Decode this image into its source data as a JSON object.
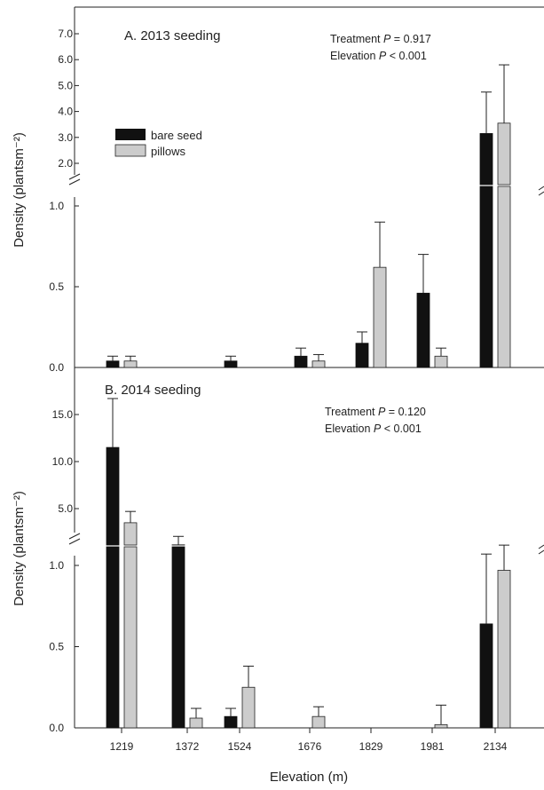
{
  "colors": {
    "bare_seed": "#111111",
    "pillows": "#cccccc",
    "axis": "#222222"
  },
  "x_axis": {
    "label": "Elevation (m)",
    "categories": [
      "1219",
      "1372",
      "1524",
      "1676",
      "1829",
      "1981",
      "2134"
    ]
  },
  "legend": {
    "placement": "upper-left of panel A",
    "items": [
      "bare seed",
      "pillows"
    ]
  },
  "panels": [
    {
      "title": "A. 2013 seeding",
      "stat_line_1_prefix": "Treatment ",
      "stat_line_1_p": "P",
      "stat_line_1_suffix": " = 0.917",
      "stat_line_2_prefix": "Elevation ",
      "stat_line_2_p": "P",
      "stat_line_2_suffix": " < 0.001",
      "ylabel": "Density (plantsm⁻²)"
    },
    {
      "title": "B. 2014 seeding",
      "stat_line_1_prefix": "Treatment ",
      "stat_line_1_p": "P",
      "stat_line_1_suffix": " = 0.120",
      "stat_line_2_prefix": "Elevation ",
      "stat_line_2_p": "P",
      "stat_line_2_suffix": " < 0.001",
      "ylabel": "Density (plantsm⁻²)"
    }
  ],
  "chart_data": [
    {
      "type": "bar",
      "title": "A. 2013 seeding",
      "xlabel": "Elevation (m)",
      "ylabel": "Density (plantsm-2)",
      "categories": [
        "1219",
        "1372",
        "1524",
        "1676",
        "1829",
        "1981",
        "2134"
      ],
      "broken_axis": true,
      "lower_range": [
        0,
        1.1
      ],
      "upper_range": [
        1.6,
        7.5
      ],
      "lower_ticks": [
        "0.0",
        "0.5",
        "1.0"
      ],
      "upper_ticks": [
        "2.0",
        "3.0",
        "4.0",
        "5.0",
        "6.0",
        "7.0"
      ],
      "series": [
        {
          "name": "bare seed",
          "values": [
            0.04,
            null,
            0.04,
            0.07,
            0.15,
            0.46,
            3.15
          ],
          "errors": [
            0.03,
            null,
            0.03,
            0.05,
            0.07,
            0.24,
            1.6
          ]
        },
        {
          "name": "pillows",
          "values": [
            0.04,
            null,
            null,
            0.04,
            0.62,
            0.07,
            3.55
          ],
          "errors": [
            0.03,
            null,
            null,
            0.04,
            0.28,
            0.05,
            2.25
          ]
        }
      ]
    },
    {
      "type": "bar",
      "title": "B. 2014 seeding",
      "xlabel": "Elevation (m)",
      "ylabel": "Density (plantsm-2)",
      "categories": [
        "1219",
        "1372",
        "1524",
        "1676",
        "1829",
        "1981",
        "2134"
      ],
      "broken_axis": true,
      "lower_range": [
        0,
        1.1
      ],
      "upper_range": [
        1.5,
        17.5
      ],
      "lower_ticks": [
        "0.0",
        "0.5",
        "1.0"
      ],
      "upper_ticks": [
        "5.0",
        "10.0",
        "15.0"
      ],
      "series": [
        {
          "name": "bare seed",
          "values": [
            11.5,
            1.15,
            0.07,
            null,
            null,
            null,
            0.64
          ],
          "errors": [
            5.2,
            0.9,
            0.05,
            null,
            null,
            null,
            0.43
          ]
        },
        {
          "name": "pillows",
          "values": [
            3.5,
            0.06,
            0.25,
            0.07,
            null,
            0.02,
            0.97
          ],
          "errors": [
            1.2,
            0.06,
            0.13,
            0.06,
            null,
            0.12,
            0.15
          ]
        }
      ]
    }
  ]
}
